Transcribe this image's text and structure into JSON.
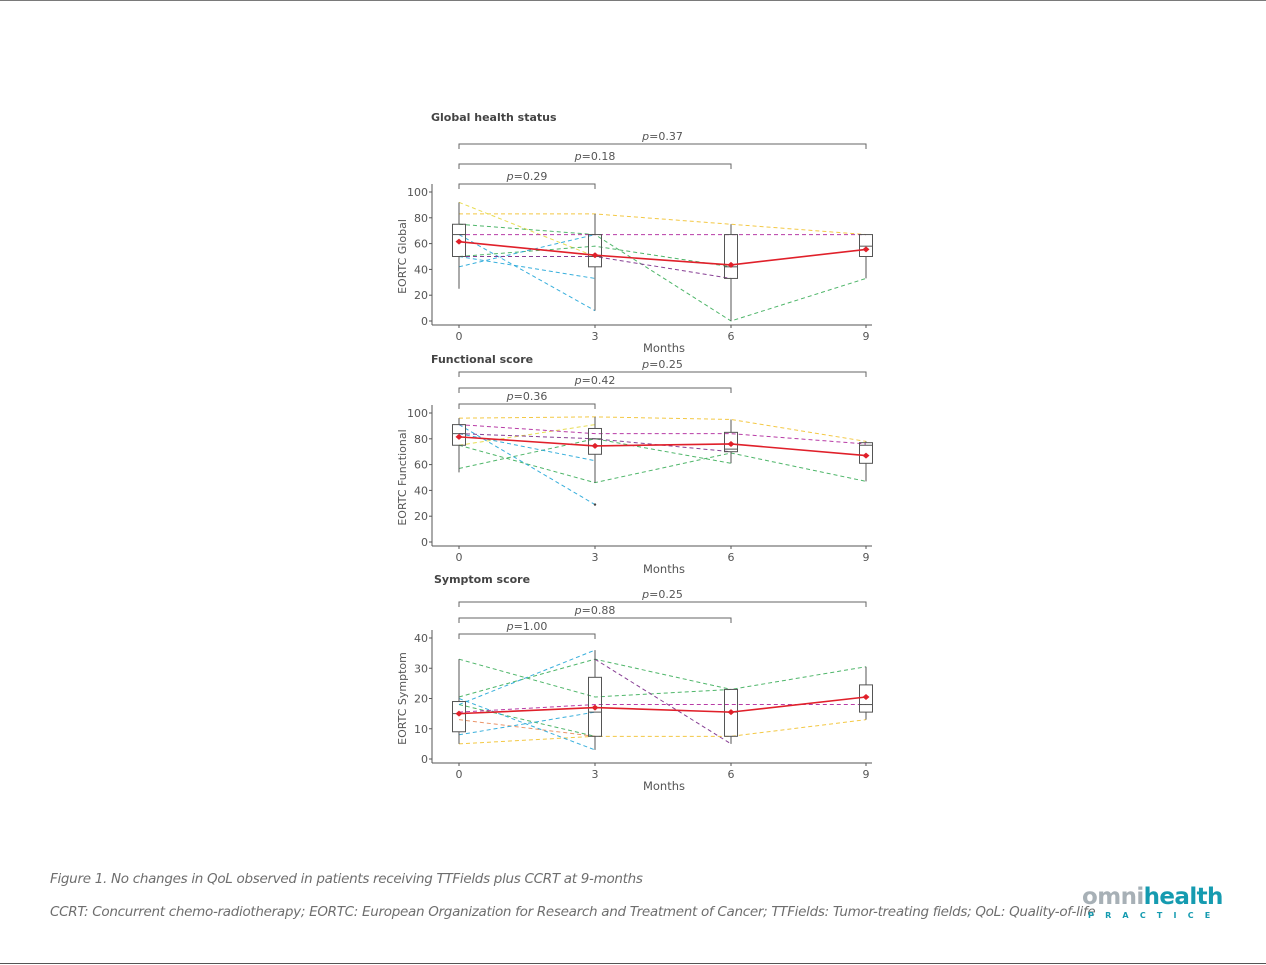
{
  "figure": {
    "caption": "Figure 1. No changes in QoL observed in patients receiving TTFields plus CCRT at 9-months",
    "abbreviations": "CCRT: Concurrent chemo-radiotherapy; EORTC: European Organization for Research and Treatment of Cancer; TTFields: Tumor-treating fields; QoL: Quality-of-life"
  },
  "logo": {
    "part1": "omni",
    "part2": "health",
    "tagline": "PRACTICE",
    "colors": {
      "grey": "#a7b0b6",
      "teal": "#159bb0"
    }
  },
  "colors": {
    "mean_line": "#e0202a",
    "box": "#555555",
    "axis": "#555555",
    "patients": [
      "#f2c230",
      "#e6d940",
      "#3cae5a",
      "#22a6d8",
      "#b0279c",
      "#7a2a88",
      "#e88a5a"
    ]
  },
  "chart_data": [
    {
      "type": "box-line",
      "title": "Global health status",
      "xlabel": "Months",
      "ylabel": "EORTC Global",
      "x": [
        0,
        3,
        6,
        9
      ],
      "xticks": [
        "0",
        "3",
        "6",
        "9"
      ],
      "ylim": [
        0,
        100
      ],
      "yticks": [
        0,
        20,
        40,
        60,
        80,
        100
      ],
      "boxes": [
        {
          "x": 0,
          "min": 25,
          "q1": 50,
          "median": 67,
          "q3": 75,
          "max": 92
        },
        {
          "x": 3,
          "min": 8,
          "q1": 42,
          "median": 50,
          "q3": 67,
          "max": 83
        },
        {
          "x": 6,
          "min": 0,
          "q1": 33,
          "median": 42,
          "q3": 67,
          "max": 75
        },
        {
          "x": 9,
          "min": 33,
          "q1": 50,
          "median": 58,
          "q3": 67,
          "max": 67
        }
      ],
      "mean": [
        61.5,
        51,
        43.5,
        55.5
      ],
      "patients": [
        {
          "color": "#f2c230",
          "x": [
            0,
            3,
            6,
            9
          ],
          "y": [
            83,
            83,
            75,
            67
          ]
        },
        {
          "color": "#e6d940",
          "x": [
            0,
            3
          ],
          "y": [
            92,
            50
          ]
        },
        {
          "color": "#3cae5a",
          "x": [
            0,
            3,
            6,
            9
          ],
          "y": [
            75,
            67,
            0,
            33
          ]
        },
        {
          "color": "#3cae5a",
          "x": [
            0,
            3,
            6
          ],
          "y": [
            50,
            58,
            42
          ]
        },
        {
          "color": "#22a6d8",
          "x": [
            0,
            3
          ],
          "y": [
            42,
            67
          ]
        },
        {
          "color": "#22a6d8",
          "x": [
            0,
            3
          ],
          "y": [
            67,
            8
          ]
        },
        {
          "color": "#22a6d8",
          "x": [
            0,
            3
          ],
          "y": [
            50,
            33
          ]
        },
        {
          "color": "#b0279c",
          "x": [
            0,
            3,
            6,
            9
          ],
          "y": [
            67,
            67,
            67,
            67
          ]
        },
        {
          "color": "#7a2a88",
          "x": [
            0,
            3,
            6
          ],
          "y": [
            50,
            50,
            33
          ]
        }
      ],
      "comparisons": [
        {
          "from": 0,
          "to": 3,
          "label": "p=0.29",
          "p": 0.29
        },
        {
          "from": 0,
          "to": 6,
          "label": "p=0.18",
          "p": 0.18
        },
        {
          "from": 0,
          "to": 9,
          "label": "p=0.37",
          "p": 0.37
        }
      ]
    },
    {
      "type": "box-line",
      "title": "Functional score",
      "xlabel": "Months",
      "ylabel": "EORTC Functional",
      "x": [
        0,
        3,
        6,
        9
      ],
      "xticks": [
        "0",
        "3",
        "6",
        "9"
      ],
      "ylim": [
        0,
        100
      ],
      "yticks": [
        0,
        20,
        40,
        60,
        80,
        100
      ],
      "boxes": [
        {
          "x": 0,
          "min": 54,
          "q1": 75,
          "median": 84,
          "q3": 91,
          "max": 96
        },
        {
          "x": 3,
          "min": 46,
          "q1": 68,
          "median": 80,
          "q3": 88,
          "max": 97
        },
        {
          "x": 6,
          "min": 61,
          "q1": 70,
          "median": 72,
          "q3": 85,
          "max": 95
        },
        {
          "x": 9,
          "min": 47,
          "q1": 61,
          "median": 75,
          "q3": 77,
          "max": 78
        }
      ],
      "outliers": [
        {
          "x": 3,
          "y": 29
        }
      ],
      "mean": [
        81.5,
        74.5,
        76,
        67
      ],
      "patients": [
        {
          "color": "#f2c230",
          "x": [
            0,
            3,
            6,
            9
          ],
          "y": [
            96,
            97,
            95,
            78
          ]
        },
        {
          "color": "#e6d940",
          "x": [
            0,
            3
          ],
          "y": [
            75,
            91
          ]
        },
        {
          "color": "#3cae5a",
          "x": [
            0,
            3,
            6,
            9
          ],
          "y": [
            75,
            46,
            69,
            47
          ]
        },
        {
          "color": "#3cae5a",
          "x": [
            0,
            3,
            6
          ],
          "y": [
            57,
            80,
            61
          ]
        },
        {
          "color": "#22a6d8",
          "x": [
            0,
            3
          ],
          "y": [
            91,
            29
          ]
        },
        {
          "color": "#22a6d8",
          "x": [
            0,
            3
          ],
          "y": [
            84,
            63
          ]
        },
        {
          "color": "#b0279c",
          "x": [
            0,
            3,
            6,
            9
          ],
          "y": [
            91,
            84,
            84,
            76
          ]
        },
        {
          "color": "#7a2a88",
          "x": [
            0,
            3,
            6
          ],
          "y": [
            84,
            80,
            70
          ]
        }
      ],
      "comparisons": [
        {
          "from": 0,
          "to": 3,
          "label": "p=0.36",
          "p": 0.36
        },
        {
          "from": 0,
          "to": 6,
          "label": "p=0.42",
          "p": 0.42
        },
        {
          "from": 0,
          "to": 9,
          "label": "p=0.25",
          "p": 0.25
        }
      ]
    },
    {
      "type": "box-line",
      "title": "Symptom score",
      "xlabel": "Months",
      "ylabel": "EORTC Symptom",
      "x": [
        0,
        3,
        6,
        9
      ],
      "xticks": [
        "0",
        "3",
        "6",
        "9"
      ],
      "ylim": [
        0,
        40
      ],
      "yticks": [
        0,
        10,
        20,
        30,
        40
      ],
      "boxes": [
        {
          "x": 0,
          "min": 5,
          "q1": 9,
          "median": 15,
          "q3": 19,
          "max": 33
        },
        {
          "x": 3,
          "min": 3,
          "q1": 7.5,
          "median": 15.5,
          "q3": 27,
          "max": 36
        },
        {
          "x": 6,
          "min": 5,
          "q1": 7.5,
          "median": 15.5,
          "q3": 23,
          "max": 23
        },
        {
          "x": 9,
          "min": 13,
          "q1": 15.5,
          "median": 18,
          "q3": 24.5,
          "max": 30.5
        }
      ],
      "mean": [
        15,
        17,
        15.5,
        20.5
      ],
      "patients": [
        {
          "color": "#f2c230",
          "x": [
            0,
            3,
            6,
            9
          ],
          "y": [
            5,
            7.5,
            7.5,
            13
          ]
        },
        {
          "color": "#e88a5a",
          "x": [
            0,
            3
          ],
          "y": [
            13,
            7.5
          ]
        },
        {
          "color": "#3cae5a",
          "x": [
            0,
            3,
            6,
            9
          ],
          "y": [
            33,
            20.5,
            23,
            30.5
          ]
        },
        {
          "color": "#3cae5a",
          "x": [
            0,
            3,
            6
          ],
          "y": [
            20.5,
            33,
            23
          ]
        },
        {
          "color": "#3cae5a",
          "x": [
            0,
            3
          ],
          "y": [
            18,
            7.5
          ]
        },
        {
          "color": "#22a6d8",
          "x": [
            0,
            3
          ],
          "y": [
            18,
            36
          ]
        },
        {
          "color": "#22a6d8",
          "x": [
            0,
            3
          ],
          "y": [
            20,
            3
          ]
        },
        {
          "color": "#22a6d8",
          "x": [
            0,
            3
          ],
          "y": [
            8,
            15.5
          ]
        },
        {
          "color": "#b0279c",
          "x": [
            0,
            3,
            6,
            9
          ],
          "y": [
            15.5,
            18,
            18,
            18
          ]
        },
        {
          "color": "#7a2a88",
          "x": [
            3,
            6
          ],
          "y": [
            33,
            5
          ]
        }
      ],
      "comparisons": [
        {
          "from": 0,
          "to": 3,
          "label": "p=1.00",
          "p": 1.0
        },
        {
          "from": 0,
          "to": 6,
          "label": "p=0.88",
          "p": 0.88
        },
        {
          "from": 0,
          "to": 9,
          "label": "p=0.25",
          "p": 0.25
        }
      ]
    }
  ]
}
